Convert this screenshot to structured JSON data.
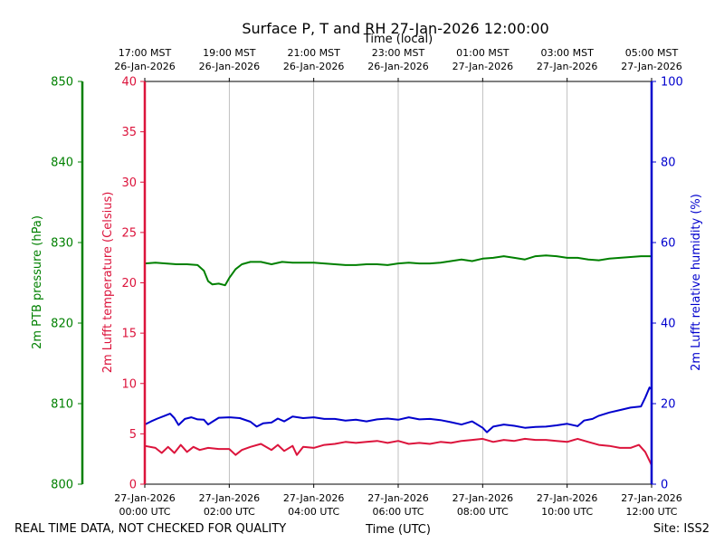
{
  "chart_data": {
    "type": "line",
    "title": "Surface P, T and RH 27-Jan-2026 12:00:00",
    "top_axis_label": "Time (local)",
    "bottom_axis_label": "Time (UTC)",
    "x_range_hours": [
      0,
      12
    ],
    "bottom_ticks": [
      {
        "hour": 0,
        "date": "27-Jan-2026",
        "time": "00:00 UTC"
      },
      {
        "hour": 2,
        "date": "27-Jan-2026",
        "time": "02:00 UTC"
      },
      {
        "hour": 4,
        "date": "27-Jan-2026",
        "time": "04:00 UTC"
      },
      {
        "hour": 6,
        "date": "27-Jan-2026",
        "time": "06:00 UTC"
      },
      {
        "hour": 8,
        "date": "27-Jan-2026",
        "time": "08:00 UTC"
      },
      {
        "hour": 10,
        "date": "27-Jan-2026",
        "time": "10:00 UTC"
      },
      {
        "hour": 12,
        "date": "27-Jan-2026",
        "time": "12:00 UTC"
      }
    ],
    "top_ticks": [
      {
        "hour": 0,
        "time": "17:00 MST",
        "date": "26-Jan-2026"
      },
      {
        "hour": 2,
        "time": "19:00 MST",
        "date": "26-Jan-2026"
      },
      {
        "hour": 4,
        "time": "21:00 MST",
        "date": "26-Jan-2026"
      },
      {
        "hour": 6,
        "time": "23:00 MST",
        "date": "26-Jan-2026"
      },
      {
        "hour": 8,
        "time": "01:00 MST",
        "date": "27-Jan-2026"
      },
      {
        "hour": 10,
        "time": "03:00 MST",
        "date": "27-Jan-2026"
      },
      {
        "hour": 12,
        "time": "05:00 MST",
        "date": "27-Jan-2026"
      }
    ],
    "axes": {
      "pressure": {
        "label": "2m PTB pressure (hPa)",
        "range": [
          800,
          850
        ],
        "ticks": [
          "800",
          "810",
          "820",
          "830",
          "840",
          "850"
        ],
        "color": "#008000"
      },
      "temperature": {
        "label": "2m Lufft temperature (Celsius)",
        "range": [
          0,
          40
        ],
        "ticks": [
          "0",
          "5",
          "10",
          "15",
          "20",
          "25",
          "30",
          "35",
          "40"
        ],
        "color": "#dc143c"
      },
      "humidity": {
        "label": "2m Lufft relative humidity (%)",
        "range": [
          0,
          100
        ],
        "ticks": [
          "0",
          "20",
          "40",
          "60",
          "80",
          "100"
        ],
        "color": "#0000cd"
      }
    },
    "series": [
      {
        "name": "2m PTB pressure",
        "axis": "pressure",
        "color": "#008000",
        "points": [
          [
            0,
            827.4
          ],
          [
            0.25,
            827.5
          ],
          [
            0.5,
            827.4
          ],
          [
            0.75,
            827.3
          ],
          [
            1.0,
            827.3
          ],
          [
            1.25,
            827.2
          ],
          [
            1.4,
            826.5
          ],
          [
            1.5,
            825.2
          ],
          [
            1.6,
            824.8
          ],
          [
            1.75,
            824.9
          ],
          [
            1.9,
            824.7
          ],
          [
            2.0,
            825.6
          ],
          [
            2.15,
            826.7
          ],
          [
            2.3,
            827.3
          ],
          [
            2.5,
            827.6
          ],
          [
            2.75,
            827.6
          ],
          [
            3.0,
            827.3
          ],
          [
            3.25,
            827.6
          ],
          [
            3.5,
            827.5
          ],
          [
            3.75,
            827.5
          ],
          [
            4.0,
            827.5
          ],
          [
            4.25,
            827.4
          ],
          [
            4.5,
            827.3
          ],
          [
            4.75,
            827.2
          ],
          [
            5.0,
            827.2
          ],
          [
            5.25,
            827.3
          ],
          [
            5.5,
            827.3
          ],
          [
            5.75,
            827.2
          ],
          [
            6.0,
            827.4
          ],
          [
            6.25,
            827.5
          ],
          [
            6.5,
            827.4
          ],
          [
            6.75,
            827.4
          ],
          [
            7.0,
            827.5
          ],
          [
            7.25,
            827.7
          ],
          [
            7.5,
            827.9
          ],
          [
            7.75,
            827.7
          ],
          [
            8.0,
            828.0
          ],
          [
            8.25,
            828.1
          ],
          [
            8.5,
            828.3
          ],
          [
            8.75,
            828.1
          ],
          [
            9.0,
            827.9
          ],
          [
            9.25,
            828.3
          ],
          [
            9.5,
            828.4
          ],
          [
            9.75,
            828.3
          ],
          [
            10.0,
            828.1
          ],
          [
            10.25,
            828.1
          ],
          [
            10.5,
            827.9
          ],
          [
            10.75,
            827.8
          ],
          [
            11.0,
            828.0
          ],
          [
            11.25,
            828.1
          ],
          [
            11.5,
            828.2
          ],
          [
            11.75,
            828.3
          ],
          [
            12.0,
            828.3
          ]
        ]
      },
      {
        "name": "2m Lufft temperature",
        "axis": "temperature",
        "color": "#dc143c",
        "points": [
          [
            0,
            3.8
          ],
          [
            0.25,
            3.6
          ],
          [
            0.4,
            3.1
          ],
          [
            0.55,
            3.7
          ],
          [
            0.7,
            3.1
          ],
          [
            0.85,
            3.9
          ],
          [
            1.0,
            3.2
          ],
          [
            1.15,
            3.7
          ],
          [
            1.3,
            3.4
          ],
          [
            1.5,
            3.6
          ],
          [
            1.75,
            3.5
          ],
          [
            2.0,
            3.5
          ],
          [
            2.15,
            2.9
          ],
          [
            2.3,
            3.4
          ],
          [
            2.5,
            3.7
          ],
          [
            2.75,
            4.0
          ],
          [
            3.0,
            3.4
          ],
          [
            3.15,
            3.9
          ],
          [
            3.3,
            3.3
          ],
          [
            3.5,
            3.8
          ],
          [
            3.6,
            2.9
          ],
          [
            3.75,
            3.7
          ],
          [
            4.0,
            3.6
          ],
          [
            4.25,
            3.9
          ],
          [
            4.5,
            4.0
          ],
          [
            4.75,
            4.2
          ],
          [
            5.0,
            4.1
          ],
          [
            5.25,
            4.2
          ],
          [
            5.5,
            4.3
          ],
          [
            5.75,
            4.1
          ],
          [
            6.0,
            4.3
          ],
          [
            6.25,
            4.0
          ],
          [
            6.5,
            4.1
          ],
          [
            6.75,
            4.0
          ],
          [
            7.0,
            4.2
          ],
          [
            7.25,
            4.1
          ],
          [
            7.5,
            4.3
          ],
          [
            7.75,
            4.4
          ],
          [
            8.0,
            4.5
          ],
          [
            8.25,
            4.2
          ],
          [
            8.5,
            4.4
          ],
          [
            8.75,
            4.3
          ],
          [
            9.0,
            4.5
          ],
          [
            9.25,
            4.4
          ],
          [
            9.5,
            4.4
          ],
          [
            9.75,
            4.3
          ],
          [
            10.0,
            4.2
          ],
          [
            10.25,
            4.5
          ],
          [
            10.5,
            4.2
          ],
          [
            10.75,
            3.9
          ],
          [
            11.0,
            3.8
          ],
          [
            11.25,
            3.6
          ],
          [
            11.5,
            3.6
          ],
          [
            11.7,
            3.9
          ],
          [
            11.85,
            3.2
          ],
          [
            12.0,
            1.9
          ]
        ]
      },
      {
        "name": "2m Lufft relative humidity",
        "axis": "humidity",
        "color": "#0000cd",
        "points": [
          [
            0,
            14.8
          ],
          [
            0.15,
            15.6
          ],
          [
            0.3,
            16.3
          ],
          [
            0.45,
            16.9
          ],
          [
            0.6,
            17.5
          ],
          [
            0.7,
            16.4
          ],
          [
            0.8,
            14.7
          ],
          [
            0.95,
            16.2
          ],
          [
            1.1,
            16.6
          ],
          [
            1.25,
            16.1
          ],
          [
            1.4,
            16.0
          ],
          [
            1.5,
            14.8
          ],
          [
            1.6,
            15.5
          ],
          [
            1.75,
            16.5
          ],
          [
            2.0,
            16.6
          ],
          [
            2.25,
            16.4
          ],
          [
            2.5,
            15.5
          ],
          [
            2.65,
            14.3
          ],
          [
            2.8,
            15.1
          ],
          [
            3.0,
            15.3
          ],
          [
            3.15,
            16.3
          ],
          [
            3.3,
            15.6
          ],
          [
            3.5,
            16.8
          ],
          [
            3.75,
            16.4
          ],
          [
            4.0,
            16.6
          ],
          [
            4.25,
            16.2
          ],
          [
            4.5,
            16.2
          ],
          [
            4.75,
            15.8
          ],
          [
            5.0,
            16.0
          ],
          [
            5.25,
            15.6
          ],
          [
            5.5,
            16.1
          ],
          [
            5.75,
            16.3
          ],
          [
            6.0,
            16.0
          ],
          [
            6.25,
            16.6
          ],
          [
            6.5,
            16.1
          ],
          [
            6.75,
            16.2
          ],
          [
            7.0,
            15.9
          ],
          [
            7.25,
            15.4
          ],
          [
            7.5,
            14.8
          ],
          [
            7.75,
            15.6
          ],
          [
            8.0,
            14.0
          ],
          [
            8.1,
            12.9
          ],
          [
            8.25,
            14.3
          ],
          [
            8.5,
            14.8
          ],
          [
            8.75,
            14.5
          ],
          [
            9.0,
            14.0
          ],
          [
            9.25,
            14.2
          ],
          [
            9.5,
            14.3
          ],
          [
            9.75,
            14.6
          ],
          [
            10.0,
            15.0
          ],
          [
            10.25,
            14.4
          ],
          [
            10.4,
            15.8
          ],
          [
            10.6,
            16.2
          ],
          [
            10.75,
            17.0
          ],
          [
            11.0,
            17.8
          ],
          [
            11.25,
            18.4
          ],
          [
            11.5,
            19.0
          ],
          [
            11.75,
            19.3
          ],
          [
            11.85,
            21.5
          ],
          [
            11.95,
            24.0
          ],
          [
            12.0,
            23.5
          ]
        ]
      }
    ],
    "footer_left": "REAL TIME DATA, NOT CHECKED FOR QUALITY",
    "footer_right": "Site: ISS2",
    "grid": "vertical"
  }
}
